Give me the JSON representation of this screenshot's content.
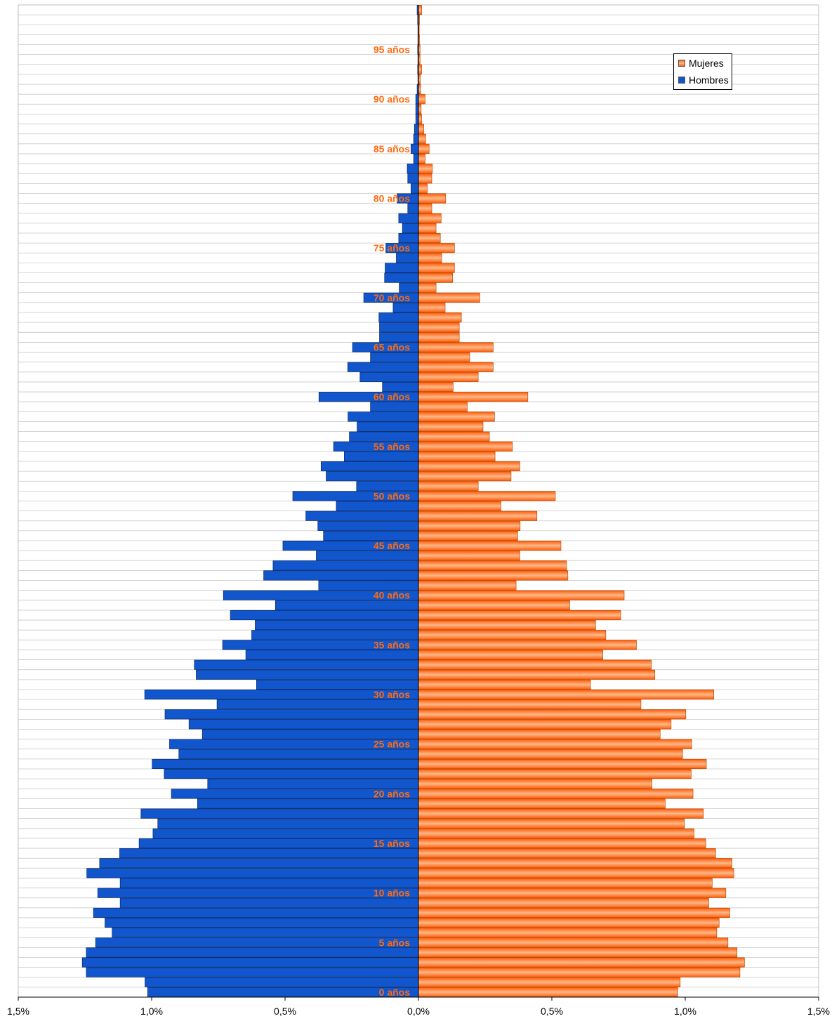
{
  "chart_data": {
    "type": "bar",
    "orientation": "horizontal",
    "layout": "population-pyramid",
    "x_tick_labels": [
      "1,5%",
      "1,0%",
      "0,5%",
      "0,0%",
      "0,5%",
      "1,0%",
      "1,5%"
    ],
    "x_range_percent": [
      -1.5,
      1.5
    ],
    "y_tick_labels": [
      "0 años",
      "5 años",
      "10 años",
      "15 años",
      "20 años",
      "25 años",
      "30 años",
      "35 años",
      "40 años",
      "45 años",
      "50 años",
      "55 años",
      "60 años",
      "65 años",
      "70 años",
      "75 años",
      "80 años",
      "85 años",
      "90 años",
      "95 años"
    ],
    "ages": [
      0,
      1,
      2,
      3,
      4,
      5,
      6,
      7,
      8,
      9,
      10,
      11,
      12,
      13,
      14,
      15,
      16,
      17,
      18,
      19,
      20,
      21,
      22,
      23,
      24,
      25,
      26,
      27,
      28,
      29,
      30,
      31,
      32,
      33,
      34,
      35,
      36,
      37,
      38,
      39,
      40,
      41,
      42,
      43,
      44,
      45,
      46,
      47,
      48,
      49,
      50,
      51,
      52,
      53,
      54,
      55,
      56,
      57,
      58,
      59,
      60,
      61,
      62,
      63,
      64,
      65,
      66,
      67,
      68,
      69,
      70,
      71,
      72,
      73,
      74,
      75,
      76,
      77,
      78,
      79,
      80,
      81,
      82,
      83,
      84,
      85,
      86,
      87,
      88,
      89,
      90,
      91,
      92,
      93,
      94,
      95,
      96,
      97,
      98,
      99
    ],
    "series": [
      {
        "name": "Hombres",
        "color": "#1156cc",
        "values": [
          1.015,
          1.025,
          1.245,
          1.26,
          1.245,
          1.21,
          1.148,
          1.175,
          1.218,
          1.118,
          1.202,
          1.118,
          1.243,
          1.195,
          1.12,
          1.047,
          0.995,
          0.977,
          1.04,
          0.828,
          0.926,
          0.79,
          0.953,
          0.998,
          0.898,
          0.933,
          0.81,
          0.86,
          0.95,
          0.755,
          1.026,
          0.607,
          0.833,
          0.84,
          0.647,
          0.734,
          0.625,
          0.612,
          0.705,
          0.536,
          0.731,
          0.374,
          0.58,
          0.545,
          0.383,
          0.508,
          0.356,
          0.377,
          0.422,
          0.308,
          0.471,
          0.232,
          0.346,
          0.365,
          0.278,
          0.318,
          0.259,
          0.23,
          0.264,
          0.18,
          0.373,
          0.135,
          0.219,
          0.265,
          0.18,
          0.247,
          0.146,
          0.146,
          0.148,
          0.095,
          0.205,
          0.072,
          0.127,
          0.125,
          0.083,
          0.122,
          0.074,
          0.06,
          0.074,
          0.04,
          0.08,
          0.028,
          0.04,
          0.042,
          0.018,
          0.028,
          0.018,
          0.015,
          0.01,
          0.01,
          0.01,
          0.005,
          0.002,
          0.003,
          0.002,
          0.003,
          0.002,
          0.002,
          0.003,
          0.005
        ]
      },
      {
        "name": "Mujeres",
        "color": "#ff6a10",
        "values": [
          0.972,
          0.981,
          1.205,
          1.222,
          1.194,
          1.16,
          1.118,
          1.127,
          1.167,
          1.088,
          1.152,
          1.101,
          1.182,
          1.175,
          1.114,
          1.077,
          1.033,
          0.997,
          1.068,
          0.925,
          1.029,
          0.875,
          1.022,
          1.079,
          0.99,
          1.024,
          0.906,
          0.947,
          1.002,
          0.834,
          1.107,
          0.645,
          0.886,
          0.873,
          0.691,
          0.817,
          0.702,
          0.664,
          0.758,
          0.567,
          0.771,
          0.366,
          0.56,
          0.555,
          0.38,
          0.534,
          0.372,
          0.381,
          0.444,
          0.309,
          0.513,
          0.224,
          0.347,
          0.38,
          0.287,
          0.352,
          0.266,
          0.242,
          0.285,
          0.183,
          0.41,
          0.13,
          0.224,
          0.28,
          0.192,
          0.28,
          0.153,
          0.153,
          0.161,
          0.1,
          0.23,
          0.066,
          0.128,
          0.135,
          0.087,
          0.135,
          0.082,
          0.066,
          0.085,
          0.05,
          0.102,
          0.033,
          0.05,
          0.052,
          0.025,
          0.04,
          0.027,
          0.02,
          0.012,
          0.01,
          0.025,
          0.008,
          0.007,
          0.012,
          0.006,
          0.006,
          0.004,
          0.003,
          0.004,
          0.012
        ]
      }
    ],
    "grid": true,
    "legend_position": "top-right",
    "label_color": "#ff6a10"
  }
}
